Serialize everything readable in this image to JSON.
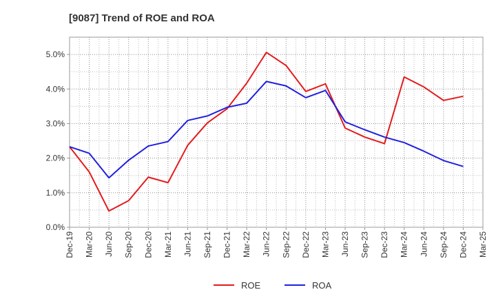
{
  "chart_data": {
    "type": "line",
    "title": "[9087]  Trend of ROE and ROA",
    "xlabel": "",
    "ylabel": "",
    "categories": [
      "Dec-19",
      "Mar-20",
      "Jun-20",
      "Sep-20",
      "Dec-20",
      "Mar-21",
      "Jun-21",
      "Sep-21",
      "Dec-21",
      "Mar-22",
      "Jun-22",
      "Sep-22",
      "Dec-22",
      "Mar-23",
      "Jun-23",
      "Sep-23",
      "Dec-23",
      "Mar-24",
      "Jun-24",
      "Sep-24",
      "Dec-24",
      "Mar-25"
    ],
    "yticks": [
      "0.0%",
      "1.0%",
      "2.0%",
      "3.0%",
      "4.0%",
      "5.0%"
    ],
    "ylim": [
      0,
      5.5
    ],
    "grid": true,
    "legend_position": "bottom",
    "series": [
      {
        "name": "ROE",
        "color": "#e31a1c",
        "values": [
          2.33,
          1.6,
          0.47,
          0.77,
          1.45,
          1.29,
          2.37,
          3.02,
          3.43,
          4.17,
          5.06,
          4.68,
          3.93,
          4.15,
          2.87,
          2.61,
          2.42,
          4.35,
          4.06,
          3.67,
          3.79,
          null
        ]
      },
      {
        "name": "ROA",
        "color": "#1f1fdf",
        "values": [
          2.33,
          2.14,
          1.43,
          1.94,
          2.35,
          2.48,
          3.09,
          3.22,
          3.47,
          3.59,
          4.22,
          4.09,
          3.75,
          3.96,
          3.05,
          2.82,
          2.61,
          2.45,
          2.2,
          1.93,
          1.76,
          null
        ]
      }
    ]
  }
}
